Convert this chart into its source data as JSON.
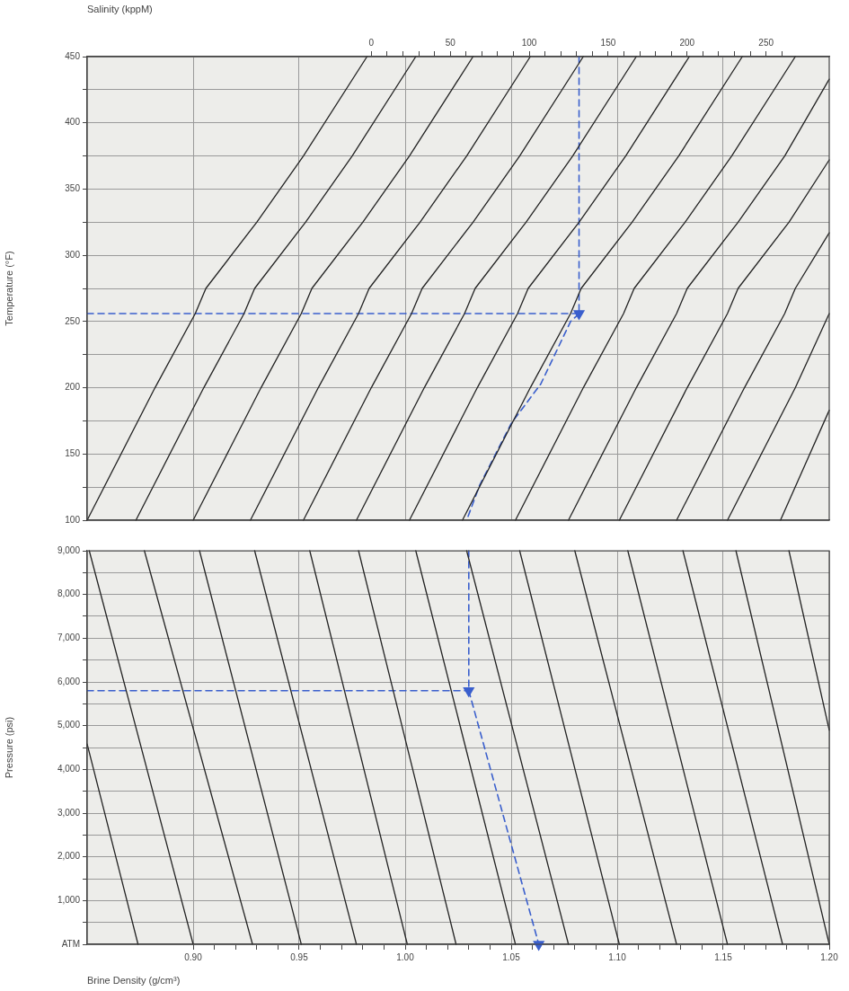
{
  "chart_data": [
    {
      "type": "line",
      "ylabel": "Temperature (°F)",
      "x2label": "Salinity (kppM)",
      "grid": true,
      "marker": "none",
      "tick_labels": "y",
      "xlim": [
        0.85,
        1.2
      ],
      "xticks": [
        {
          "value": 0.9,
          "label": null
        },
        {
          "value": 0.95,
          "label": null
        },
        {
          "value": 1.0,
          "label": null
        },
        {
          "value": 1.05,
          "label": null
        },
        {
          "value": 1.1,
          "label": null
        },
        {
          "value": 1.15,
          "label": null
        }
      ],
      "x2lim": [
        -180,
        290
      ],
      "x2ticks": [
        0,
        {
          "value": 10,
          "label": null
        },
        {
          "value": 20,
          "label": null
        },
        {
          "value": 30,
          "label": null
        },
        {
          "value": 40,
          "label": null
        },
        50,
        {
          "value": 60,
          "label": null
        },
        {
          "value": 70,
          "label": null
        },
        {
          "value": 80,
          "label": null
        },
        {
          "value": 90,
          "label": null
        },
        100,
        {
          "value": 110,
          "label": null
        },
        {
          "value": 120,
          "label": null
        },
        {
          "value": 130,
          "label": null
        },
        {
          "value": 140,
          "label": null
        },
        150,
        {
          "value": 160,
          "label": null
        },
        {
          "value": 170,
          "label": null
        },
        {
          "value": 180,
          "label": null
        },
        {
          "value": 190,
          "label": null
        },
        200,
        {
          "value": 210,
          "label": null
        },
        {
          "value": 220,
          "label": null
        },
        {
          "value": 230,
          "label": null
        },
        {
          "value": 240,
          "label": null
        },
        250,
        {
          "value": 260,
          "label": null
        }
      ],
      "ylim": [
        100,
        450
      ],
      "yticks": [
        100,
        {
          "value": 125,
          "label": null
        },
        150,
        {
          "value": 175,
          "label": null
        },
        200,
        {
          "value": 225,
          "label": null
        },
        250,
        {
          "value": 275,
          "label": null
        },
        300,
        {
          "value": 325,
          "label": null
        },
        350,
        {
          "value": 375,
          "label": null
        },
        400,
        {
          "value": 425,
          "label": null
        },
        450
      ],
      "series": [
        {
          "color": "#222222",
          "x": [
            0.85,
            0.882,
            0.901,
            0.906,
            0.93,
            0.952,
            0.982
          ],
          "values": [
            100,
            200,
            256,
            275,
            325,
            375,
            450
          ]
        },
        {
          "color": "#222222",
          "x": [
            0.873,
            0.905,
            0.924,
            0.929,
            0.953,
            0.975,
            1.005
          ],
          "values": [
            100,
            200,
            256,
            275,
            325,
            375,
            450
          ]
        },
        {
          "color": "#222222",
          "x": [
            0.9,
            0.932,
            0.951,
            0.956,
            0.98,
            1.002,
            1.032
          ],
          "values": [
            100,
            200,
            256,
            275,
            325,
            375,
            450
          ]
        },
        {
          "color": "#222222",
          "x": [
            0.927,
            0.959,
            0.978,
            0.983,
            1.007,
            1.029,
            1.059
          ],
          "values": [
            100,
            200,
            256,
            275,
            325,
            375,
            450
          ]
        },
        {
          "color": "#222222",
          "x": [
            0.952,
            0.984,
            1.003,
            1.008,
            1.032,
            1.054,
            1.084
          ],
          "values": [
            100,
            200,
            256,
            275,
            325,
            375,
            450
          ]
        },
        {
          "color": "#222222",
          "x": [
            0.977,
            1.009,
            1.028,
            1.033,
            1.057,
            1.079,
            1.109
          ],
          "values": [
            100,
            200,
            256,
            275,
            325,
            375,
            450
          ]
        },
        {
          "color": "#222222",
          "x": [
            1.002,
            1.034,
            1.053,
            1.058,
            1.082,
            1.104,
            1.134
          ],
          "values": [
            100,
            200,
            256,
            275,
            325,
            375,
            450
          ]
        },
        {
          "color": "#222222",
          "x": [
            1.027,
            1.059,
            1.078,
            1.083,
            1.107,
            1.129,
            1.159
          ],
          "values": [
            100,
            200,
            256,
            275,
            325,
            375,
            450
          ]
        },
        {
          "color": "#222222",
          "x": [
            1.052,
            1.084,
            1.103,
            1.108,
            1.132,
            1.154,
            1.184
          ],
          "values": [
            100,
            200,
            256,
            275,
            325,
            375,
            450
          ]
        },
        {
          "color": "#222222",
          "x": [
            1.077,
            1.109,
            1.128,
            1.133,
            1.157,
            1.179,
            1.2
          ],
          "values": [
            100,
            200,
            256,
            275,
            325,
            375,
            433
          ]
        },
        {
          "color": "#222222",
          "x": [
            1.101,
            1.133,
            1.152,
            1.157,
            1.181,
            1.2
          ],
          "values": [
            100,
            200,
            256,
            275,
            325,
            372
          ]
        },
        {
          "color": "#222222",
          "x": [
            1.128,
            1.16,
            1.179,
            1.184,
            1.2
          ],
          "values": [
            100,
            200,
            256,
            275,
            317
          ]
        },
        {
          "color": "#222222",
          "x": [
            1.152,
            1.184,
            1.2
          ],
          "values": [
            100,
            200,
            256
          ]
        },
        {
          "color": "#222222",
          "x": [
            1.177,
            1.2
          ],
          "values": [
            100,
            183
          ]
        },
        {
          "color": "#3a5fcd",
          "line_style": "dashed",
          "marker": "triangle",
          "x": [
            1.082,
            1.082
          ],
          "values": [
            450,
            256
          ]
        },
        {
          "color": "#3a5fcd",
          "line_style": "dashed",
          "x": [
            0.85,
            1.082
          ],
          "values": [
            256,
            256
          ]
        },
        {
          "color": "#3a5fcd",
          "line_style": "dashed",
          "x": [
            1.082,
            1.078,
            1.064,
            1.05,
            1.035,
            1.029
          ],
          "values": [
            256,
            250,
            203,
            173,
            126,
            100
          ]
        }
      ]
    },
    {
      "type": "line",
      "ylabel": "Pressure (psi)",
      "xlabel": "Brine Density (g/cm³)",
      "grid": true,
      "marker": "none",
      "xlim": [
        0.85,
        1.2
      ],
      "xticks": [
        {
          "value": 0.9,
          "label": "0.90"
        },
        {
          "value": 0.91,
          "label": null
        },
        {
          "value": 0.92,
          "label": null
        },
        {
          "value": 0.93,
          "label": null
        },
        {
          "value": 0.94,
          "label": null
        },
        {
          "value": 0.95,
          "label": "0.95"
        },
        {
          "value": 0.96,
          "label": null
        },
        {
          "value": 0.97,
          "label": null
        },
        {
          "value": 0.98,
          "label": null
        },
        {
          "value": 0.99,
          "label": null
        },
        {
          "value": 1.0,
          "label": "1.00"
        },
        {
          "value": 1.01,
          "label": null
        },
        {
          "value": 1.02,
          "label": null
        },
        {
          "value": 1.03,
          "label": null
        },
        {
          "value": 1.04,
          "label": null
        },
        {
          "value": 1.05,
          "label": "1.05"
        },
        {
          "value": 1.06,
          "label": null
        },
        {
          "value": 1.07,
          "label": null
        },
        {
          "value": 1.08,
          "label": null
        },
        {
          "value": 1.09,
          "label": null
        },
        {
          "value": 1.1,
          "label": "1.10"
        },
        {
          "value": 1.11,
          "label": null
        },
        {
          "value": 1.12,
          "label": null
        },
        {
          "value": 1.13,
          "label": null
        },
        {
          "value": 1.14,
          "label": null
        },
        {
          "value": 1.15,
          "label": "1.15"
        },
        {
          "value": 1.16,
          "label": null
        },
        {
          "value": 1.17,
          "label": null
        },
        {
          "value": 1.18,
          "label": null
        },
        {
          "value": 1.19,
          "label": null
        },
        {
          "value": 1.2,
          "label": "1.20"
        }
      ],
      "ylim": [
        0,
        9000
      ],
      "yticks": [
        {
          "value": 0,
          "label": "ATM"
        },
        {
          "value": 500,
          "label": null
        },
        {
          "value": 1000,
          "label": "1,000"
        },
        {
          "value": 1500,
          "label": null
        },
        {
          "value": 2000,
          "label": "2,000"
        },
        {
          "value": 2500,
          "label": null
        },
        {
          "value": 3000,
          "label": "3,000"
        },
        {
          "value": 3500,
          "label": null
        },
        {
          "value": 4000,
          "label": "4,000"
        },
        {
          "value": 4500,
          "label": null
        },
        {
          "value": 5000,
          "label": "5,000"
        },
        {
          "value": 5500,
          "label": null
        },
        {
          "value": 6000,
          "label": "6,000"
        },
        {
          "value": 6500,
          "label": null
        },
        {
          "value": 7000,
          "label": "7,000"
        },
        {
          "value": 7500,
          "label": null
        },
        {
          "value": 8000,
          "label": "8,000"
        },
        {
          "value": 8500,
          "label": null
        },
        {
          "value": 9000,
          "label": "9,000"
        }
      ],
      "series": [
        {
          "color": "#222222",
          "x": [
            0.85,
            0.874
          ],
          "values": [
            4580,
            0
          ]
        },
        {
          "color": "#222222",
          "x": [
            0.851,
            0.9
          ],
          "values": [
            9000,
            0
          ]
        },
        {
          "color": "#222222",
          "x": [
            0.877,
            0.928
          ],
          "values": [
            9000,
            0
          ]
        },
        {
          "color": "#222222",
          "x": [
            0.903,
            0.951
          ],
          "values": [
            9000,
            0
          ]
        },
        {
          "color": "#222222",
          "x": [
            0.929,
            0.977
          ],
          "values": [
            9000,
            0
          ]
        },
        {
          "color": "#222222",
          "x": [
            0.955,
            1.001
          ],
          "values": [
            9000,
            0
          ]
        },
        {
          "color": "#222222",
          "x": [
            0.978,
            1.024
          ],
          "values": [
            9000,
            0
          ]
        },
        {
          "color": "#222222",
          "x": [
            1.005,
            1.052
          ],
          "values": [
            9000,
            0
          ]
        },
        {
          "color": "#222222",
          "x": [
            1.029,
            1.077
          ],
          "values": [
            9000,
            0
          ]
        },
        {
          "color": "#222222",
          "x": [
            1.054,
            1.101
          ],
          "values": [
            9000,
            0
          ]
        },
        {
          "color": "#222222",
          "x": [
            1.08,
            1.128
          ],
          "values": [
            9000,
            0
          ]
        },
        {
          "color": "#222222",
          "x": [
            1.105,
            1.152
          ],
          "values": [
            9000,
            0
          ]
        },
        {
          "color": "#222222",
          "x": [
            1.131,
            1.178
          ],
          "values": [
            9000,
            0
          ]
        },
        {
          "color": "#222222",
          "x": [
            1.156,
            1.2
          ],
          "values": [
            9000,
            0
          ]
        },
        {
          "color": "#222222",
          "x": [
            1.181,
            1.2
          ],
          "values": [
            9000,
            4900
          ]
        },
        {
          "color": "#3a5fcd",
          "line_style": "dashed",
          "marker": "triangle",
          "x": [
            1.03,
            1.03
          ],
          "values": [
            9000,
            5800
          ]
        },
        {
          "color": "#3a5fcd",
          "line_style": "dashed",
          "x": [
            0.85,
            1.03
          ],
          "values": [
            5800,
            5800
          ]
        },
        {
          "color": "#3a5fcd",
          "line_style": "dashed",
          "marker": "triangle",
          "x": [
            1.03,
            1.063
          ],
          "values": [
            5800,
            0
          ]
        }
      ]
    }
  ]
}
